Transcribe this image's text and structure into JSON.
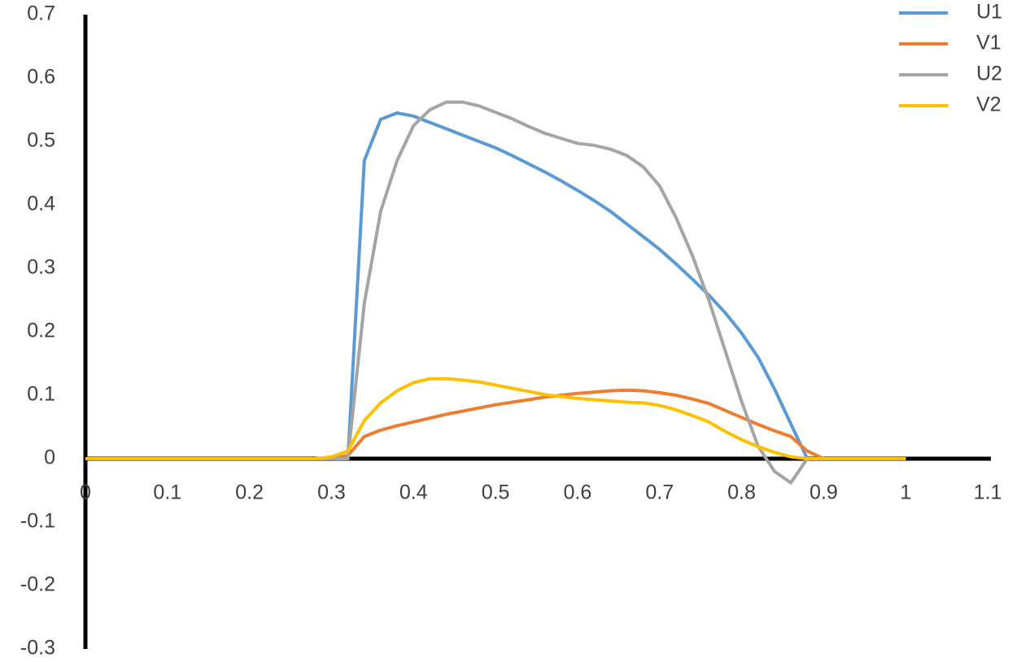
{
  "chart_data": {
    "type": "line",
    "x": [
      0,
      0.28,
      0.3,
      0.32,
      0.34,
      0.36,
      0.38,
      0.4,
      0.42,
      0.44,
      0.46,
      0.48,
      0.5,
      0.52,
      0.54,
      0.56,
      0.58,
      0.6,
      0.62,
      0.64,
      0.66,
      0.68,
      0.7,
      0.72,
      0.74,
      0.76,
      0.78,
      0.8,
      0.82,
      0.84,
      0.86,
      0.88,
      0.9,
      1.0
    ],
    "series": [
      {
        "name": "U1",
        "color": "#5b9bd5",
        "values": [
          0,
          0,
          0,
          0,
          0.47,
          0.535,
          0.545,
          0.54,
          0.53,
          0.52,
          0.51,
          0.5,
          0.49,
          0.478,
          0.465,
          0.452,
          0.438,
          0.423,
          0.407,
          0.39,
          0.37,
          0.35,
          0.33,
          0.307,
          0.283,
          0.258,
          0.23,
          0.198,
          0.16,
          0.11,
          0.055,
          0,
          0,
          0
        ]
      },
      {
        "name": "V1",
        "color": "#ed7d31",
        "values": [
          0,
          0,
          0,
          0.005,
          0.035,
          0.045,
          0.052,
          0.058,
          0.064,
          0.07,
          0.075,
          0.08,
          0.085,
          0.089,
          0.093,
          0.097,
          0.1,
          0.103,
          0.105,
          0.107,
          0.108,
          0.107,
          0.104,
          0.1,
          0.094,
          0.087,
          0.076,
          0.065,
          0.054,
          0.044,
          0.035,
          0.012,
          0,
          0
        ]
      },
      {
        "name": "U2",
        "color": "#a5a5a5",
        "values": [
          0,
          0,
          0,
          0,
          0.245,
          0.39,
          0.47,
          0.525,
          0.55,
          0.562,
          0.562,
          0.556,
          0.546,
          0.536,
          0.524,
          0.513,
          0.505,
          0.497,
          0.494,
          0.488,
          0.478,
          0.46,
          0.43,
          0.38,
          0.32,
          0.25,
          0.17,
          0.09,
          0.02,
          -0.02,
          -0.038,
          0,
          0,
          0
        ]
      },
      {
        "name": "V2",
        "color": "#ffc000",
        "values": [
          0,
          0,
          0.003,
          0.012,
          0.06,
          0.088,
          0.107,
          0.12,
          0.126,
          0.126,
          0.124,
          0.121,
          0.116,
          0.111,
          0.106,
          0.101,
          0.098,
          0.095,
          0.093,
          0.091,
          0.089,
          0.088,
          0.084,
          0.077,
          0.068,
          0.058,
          0.043,
          0.03,
          0.019,
          0.01,
          0.003,
          0,
          0,
          0
        ]
      }
    ],
    "xlim": [
      0,
      1.1
    ],
    "xticks": [
      0,
      0.1,
      0.2,
      0.3,
      0.4,
      0.5,
      0.6,
      0.7,
      0.8,
      0.9,
      1,
      1.1
    ],
    "ylim": [
      -0.3,
      0.7
    ],
    "yticks": [
      -0.3,
      -0.2,
      -0.1,
      0,
      0.1,
      0.2,
      0.3,
      0.4,
      0.5,
      0.6,
      0.7
    ],
    "legend": "top-right"
  }
}
